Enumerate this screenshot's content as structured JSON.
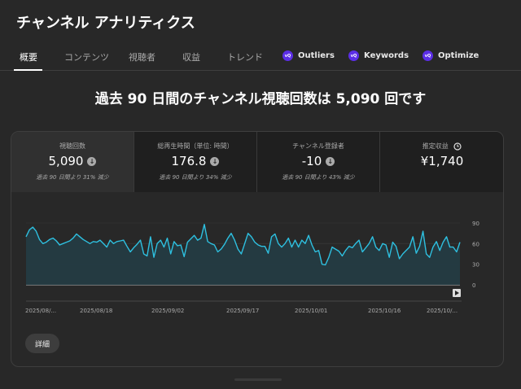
{
  "page": {
    "title": "チャンネル アナリティクス"
  },
  "tabs": [
    {
      "label": "概要",
      "active": true
    },
    {
      "label": "コンテンツ"
    },
    {
      "label": "視聴者"
    },
    {
      "label": "収益"
    },
    {
      "label": "トレンド"
    },
    {
      "label": "Outliers",
      "icon": "extension-badge-icon",
      "badge_text": "vQ"
    },
    {
      "label": "Keywords",
      "icon": "extension-badge-icon",
      "badge_text": "vQ"
    },
    {
      "label": "Optimize",
      "icon": "extension-badge-icon",
      "badge_text": "vQ"
    }
  ],
  "headline": "過去 90 日間のチャンネル視聴回数は 5,090 回です",
  "metrics": [
    {
      "label": "視聴回数",
      "value": "5,090",
      "change": "過去 90 日間より 31% 減少",
      "trend_icon": "arrow-down-icon",
      "active": true
    },
    {
      "label": "総再生時間（単位: 時間）",
      "value": "176.8",
      "change": "過去 90 日間より 34% 減少",
      "trend_icon": "arrow-down-icon"
    },
    {
      "label": "チャンネル登録者",
      "value": "-10",
      "change": "過去 90 日間より 43% 減少",
      "trend_icon": "arrow-down-icon"
    },
    {
      "label": "推定収益",
      "value": "¥1,740",
      "change": "",
      "trend_icon": "clock-icon"
    }
  ],
  "chart_data": {
    "type": "area",
    "series": [
      {
        "name": "視聴回数",
        "values": [
          70,
          80,
          84,
          78,
          66,
          60,
          62,
          66,
          68,
          64,
          58,
          60,
          62,
          64,
          68,
          74,
          70,
          66,
          63,
          60,
          63,
          62,
          65,
          60,
          55,
          65,
          60,
          63,
          64,
          65,
          56,
          48,
          54,
          59,
          65,
          45,
          42,
          70,
          40,
          60,
          65,
          55,
          68,
          45,
          63,
          57,
          58,
          41,
          62,
          67,
          72,
          65,
          68,
          88,
          63,
          60,
          58,
          48,
          52,
          59,
          68,
          75,
          65,
          52,
          45,
          60,
          75,
          70,
          62,
          58,
          56,
          56,
          46,
          70,
          74,
          60,
          55,
          60,
          68,
          55,
          65,
          55,
          65,
          60,
          72,
          58,
          48,
          50,
          30,
          29,
          40,
          55,
          52,
          49,
          42,
          50,
          56,
          54,
          60,
          65,
          48,
          54,
          60,
          70,
          55,
          50,
          60,
          58,
          40,
          62,
          56,
          38,
          45,
          50,
          55,
          70,
          46,
          56,
          78,
          45,
          40,
          55,
          63,
          50,
          62,
          70,
          55,
          55,
          48,
          62
        ]
      }
    ],
    "x_tick_labels": [
      "2025/08/...",
      "2025/08/18",
      "2025/09/02",
      "2025/09/17",
      "2025/10/01",
      "2025/10/16",
      "2025/10/..."
    ],
    "y_ticks": [
      0,
      30,
      60,
      90
    ],
    "ylim": [
      0,
      90
    ],
    "line_color": "#2ec0e0",
    "fill_color": "#233c44"
  },
  "details_button": {
    "label": "詳細"
  }
}
